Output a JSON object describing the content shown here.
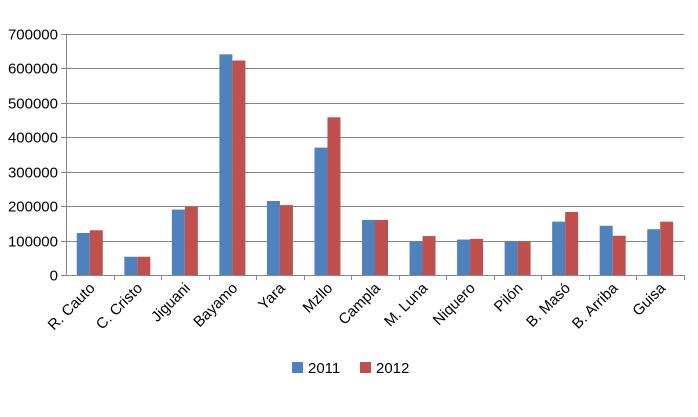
{
  "chart_data": {
    "type": "bar",
    "title": "",
    "xlabel": "",
    "ylabel": "",
    "ylim": [
      0,
      700000
    ],
    "y_ticks": [
      0,
      100000,
      200000,
      300000,
      400000,
      500000,
      600000,
      700000
    ],
    "y_tick_labels": [
      "0",
      "100000",
      "200000",
      "300000",
      "400000",
      "500000",
      "600000",
      "700000"
    ],
    "grid": true,
    "legend_position": "bottom",
    "categories": [
      "R. Cauto",
      "C. Cristo",
      "Jiguani",
      "Bayamo",
      "Yara",
      "Mzllo",
      "Campla",
      "M. Luna",
      "Niquero",
      "Pilón",
      "B. Masó",
      "B. Arriba",
      "Guisa"
    ],
    "series": [
      {
        "name": "2011",
        "color": "#4F81BD",
        "values": [
          122000,
          53000,
          190000,
          641000,
          215000,
          370000,
          160000,
          98000,
          103000,
          98000,
          155000,
          143000,
          133000
        ]
      },
      {
        "name": "2012",
        "color": "#C0504D",
        "values": [
          130000,
          53000,
          198000,
          623000,
          203000,
          458000,
          160000,
          113000,
          105000,
          98000,
          183000,
          114000,
          155000
        ]
      }
    ]
  }
}
